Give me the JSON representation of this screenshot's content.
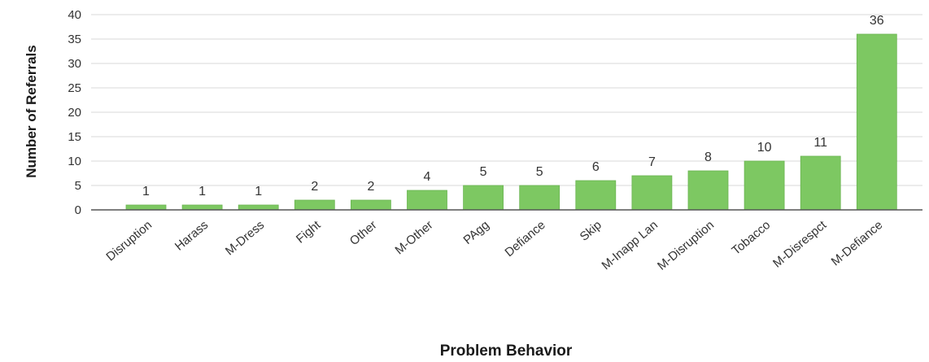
{
  "chart_data": {
    "type": "bar",
    "title": "",
    "xlabel": "Problem Behavior",
    "ylabel": "Number of Referrals",
    "categories": [
      "Disruption",
      "Harass",
      "M-Dress",
      "Fight",
      "Other",
      "M-Other",
      "PAgg",
      "Defiance",
      "Skip",
      "M-Inapp Lan",
      "M-Disruption",
      "Tobacco",
      "M-Disrespct",
      "M-Defiance"
    ],
    "values": [
      1,
      1,
      1,
      2,
      2,
      4,
      5,
      5,
      6,
      7,
      8,
      10,
      11,
      36
    ],
    "ylim": [
      0,
      40
    ],
    "yticks": [
      0,
      5,
      10,
      15,
      20,
      25,
      30,
      35,
      40
    ],
    "grid": true,
    "bar_color": "#7dc862",
    "bar_edge_color": "#6bb553"
  }
}
